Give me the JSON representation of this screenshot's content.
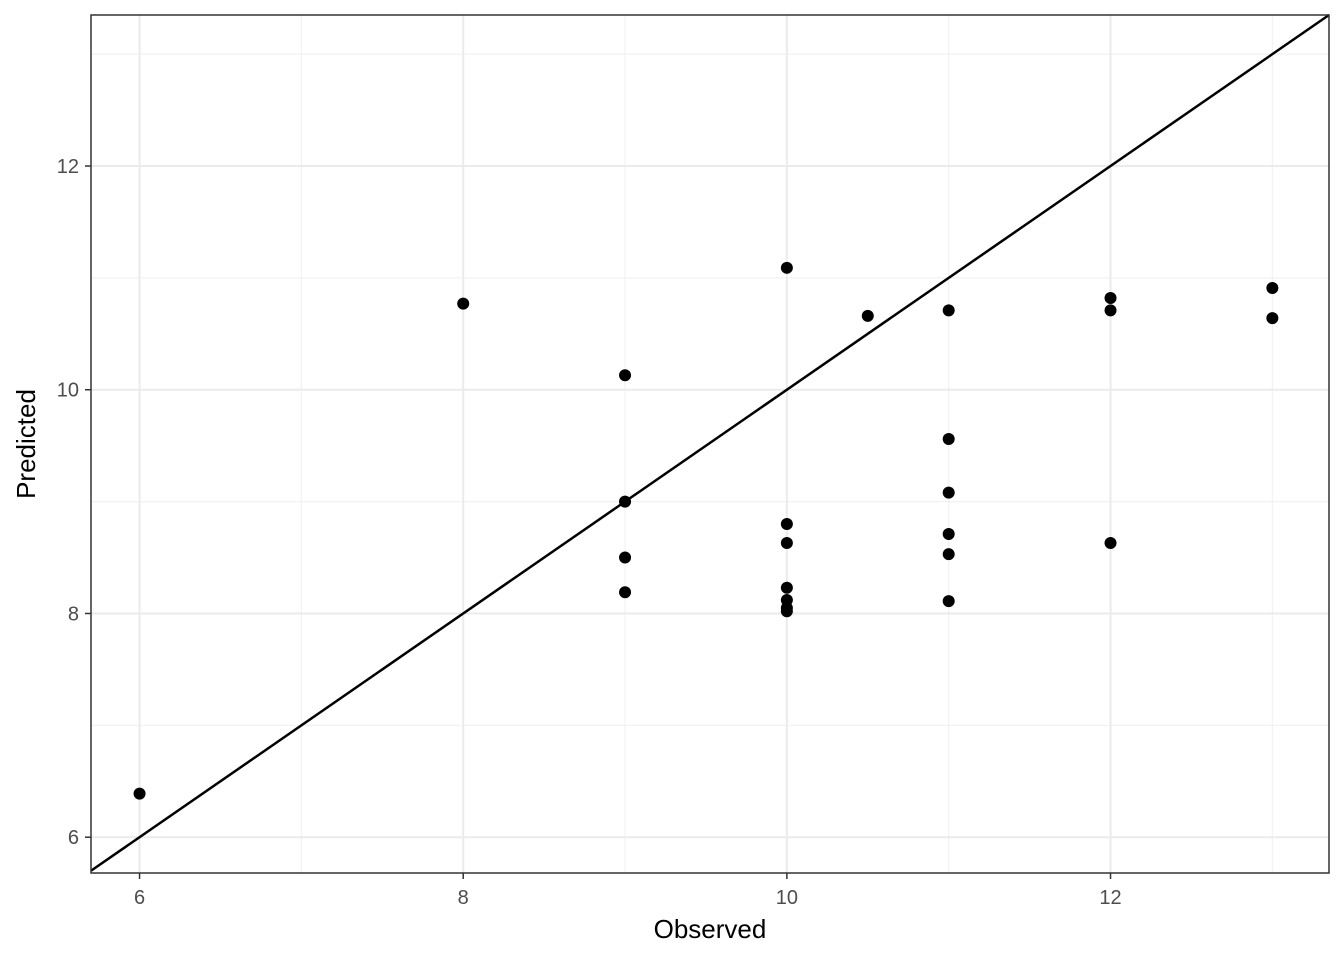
{
  "chart_data": {
    "type": "scatter",
    "title": "",
    "xlabel": "Observed",
    "ylabel": "Predicted",
    "xlim": [
      5.7,
      13.35
    ],
    "ylim": [
      5.68,
      13.35
    ],
    "x_ticks": [
      6,
      8,
      10,
      12
    ],
    "y_ticks": [
      6,
      8,
      10,
      12
    ],
    "x_tick_labels": [
      "6",
      "8",
      "10",
      "12"
    ],
    "y_tick_labels": [
      "6",
      "8",
      "10",
      "12"
    ],
    "grid": true,
    "legend": "none",
    "reference_line": {
      "slope": 1,
      "intercept": 0
    },
    "point_color": "#000000",
    "points": [
      {
        "x": 6,
        "y": 6.39
      },
      {
        "x": 8,
        "y": 10.77
      },
      {
        "x": 9,
        "y": 10.13
      },
      {
        "x": 9,
        "y": 9.0
      },
      {
        "x": 9,
        "y": 8.5
      },
      {
        "x": 9,
        "y": 8.19
      },
      {
        "x": 10,
        "y": 11.09
      },
      {
        "x": 10,
        "y": 8.8
      },
      {
        "x": 10,
        "y": 8.63
      },
      {
        "x": 10,
        "y": 8.23
      },
      {
        "x": 10,
        "y": 8.12
      },
      {
        "x": 10,
        "y": 8.05
      },
      {
        "x": 10,
        "y": 8.02
      },
      {
        "x": 10.5,
        "y": 10.66
      },
      {
        "x": 11,
        "y": 10.71
      },
      {
        "x": 11,
        "y": 9.56
      },
      {
        "x": 11,
        "y": 9.08
      },
      {
        "x": 11,
        "y": 8.71
      },
      {
        "x": 11,
        "y": 8.53
      },
      {
        "x": 11,
        "y": 8.11
      },
      {
        "x": 12,
        "y": 10.82
      },
      {
        "x": 12,
        "y": 10.71
      },
      {
        "x": 12,
        "y": 8.63
      },
      {
        "x": 13,
        "y": 10.91
      },
      {
        "x": 13,
        "y": 10.64
      }
    ]
  }
}
